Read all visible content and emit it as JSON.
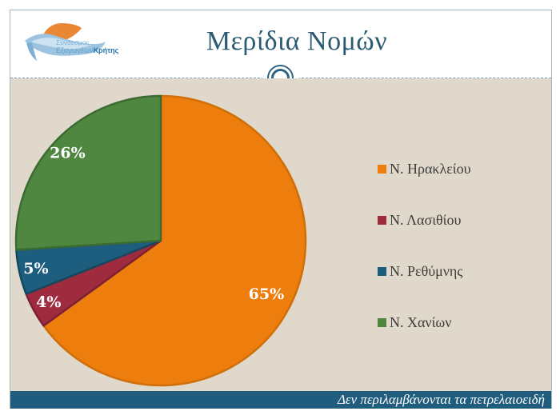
{
  "slide": {
    "logo": {
      "brand_line1": "Σύνδεσμος",
      "brand_line2a": "Εξαγωγέων",
      "brand_line2b": "Κρήτης"
    },
    "title": "Μερίδια Νομών",
    "footer_note": "Δεν περιλαμβάνονται τα πετρελαιοειδή"
  },
  "chart_data": {
    "type": "pie",
    "title": "Μερίδια Νομών",
    "categories": [
      "Ν. Ηρακλείου",
      "Ν. Λασιθίου",
      "Ν. Ρεθύμνης",
      "Ν. Χανίων"
    ],
    "values": [
      65,
      4,
      5,
      26
    ],
    "unit": "%",
    "data_labels": [
      "65%",
      "4%",
      "5%",
      "26%"
    ],
    "colors": [
      "#ed7d0c",
      "#9e2c3e",
      "#1d5e7e",
      "#4f8741"
    ],
    "edge_colors": [
      "#d06e08",
      "#7c2132",
      "#15485f",
      "#3c6b31"
    ],
    "start_angle": "top",
    "direction": "clockwise",
    "legend_position": "right",
    "label_color": "#ffffff"
  },
  "theme": {
    "background": "#dfd8cb",
    "header_background": "#ffffff",
    "title_color": "#2b5a72",
    "footer_bar_color": "#205c7e",
    "divider_color": "#7f9db0",
    "legend_text_color": "#3e3e3e"
  }
}
